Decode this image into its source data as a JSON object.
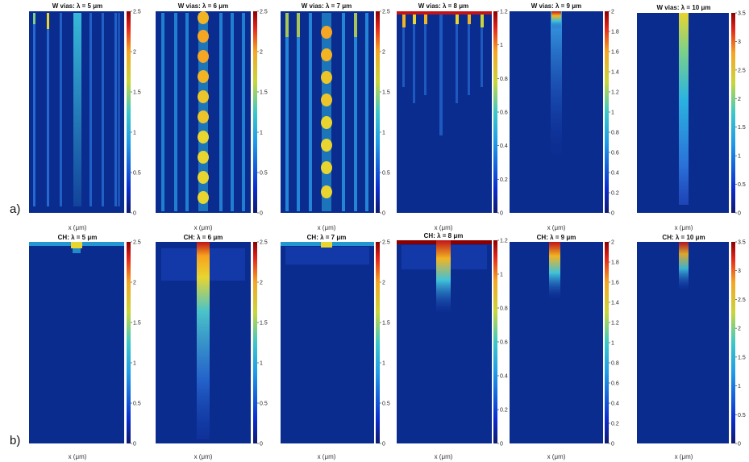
{
  "figure": {
    "row_labels": [
      "a)",
      "b)"
    ],
    "colors": {
      "dark_blue": "#0b2c8f",
      "cbar_bottom": "#101a6e",
      "cbar_top": "#8a0000"
    }
  },
  "chart_data": [
    {
      "type": "heatmap",
      "row": "a",
      "title": "W vias: λ = 5 μm",
      "xlabel": "x (μm)",
      "colorbar": {
        "min": 0,
        "max": 2.5,
        "ticks": [
          "2.5",
          "2",
          "1.5",
          "1",
          "0.5",
          "0"
        ]
      }
    },
    {
      "type": "heatmap",
      "row": "a",
      "title": "W vias: λ = 6 μm",
      "xlabel": "x (μm)",
      "colorbar": {
        "min": 0,
        "max": 2.5,
        "ticks": [
          "2.5",
          "2",
          "1.5",
          "1",
          "0.5",
          "0"
        ]
      }
    },
    {
      "type": "heatmap",
      "row": "a",
      "title": "W vias: λ = 7 μm",
      "xlabel": "x (μm)",
      "colorbar": {
        "min": 0,
        "max": 2.5,
        "ticks": [
          "2.5",
          "2",
          "1.5",
          "1",
          "0.5",
          "0"
        ]
      }
    },
    {
      "type": "heatmap",
      "row": "a",
      "title": "W vias: λ = 8 μm",
      "xlabel": "x (μm)",
      "colorbar": {
        "min": 0,
        "max": 1.2,
        "ticks": [
          "1.2",
          "1",
          "0.8",
          "0.6",
          "0.4",
          "0.2",
          "0"
        ]
      }
    },
    {
      "type": "heatmap",
      "row": "a",
      "title": "W vias: λ = 9 μm",
      "xlabel": "x (μm)",
      "colorbar": {
        "min": 0,
        "max": 2,
        "ticks": [
          "2",
          "1.8",
          "1.6",
          "1.4",
          "1.2",
          "1",
          "0.8",
          "0.6",
          "0.4",
          "0.2",
          "0"
        ]
      }
    },
    {
      "type": "heatmap",
      "row": "a",
      "title": "W vias: λ = 10 μm",
      "xlabel": "x (μm)",
      "colorbar": {
        "min": 0,
        "max": 3.5,
        "ticks": [
          "3.5",
          "3",
          "2.5",
          "2",
          "1.5",
          "1",
          "0.5",
          "0"
        ]
      }
    },
    {
      "type": "heatmap",
      "row": "b",
      "title": "CH: λ = 5 μm",
      "xlabel": "x (μm)",
      "colorbar": {
        "min": 0,
        "max": 2.5,
        "ticks": [
          "2.5",
          "2",
          "1.5",
          "1",
          "0.5",
          "0"
        ]
      }
    },
    {
      "type": "heatmap",
      "row": "b",
      "title": "CH: λ = 6 μm",
      "xlabel": "x (μm)",
      "colorbar": {
        "min": 0,
        "max": 2.5,
        "ticks": [
          "2.5",
          "2",
          "1.5",
          "1",
          "0.5",
          "0"
        ]
      }
    },
    {
      "type": "heatmap",
      "row": "b",
      "title": "CH: λ = 7 μm",
      "xlabel": "x (μm)",
      "colorbar": {
        "min": 0,
        "max": 2.5,
        "ticks": [
          "2.5",
          "2",
          "1.5",
          "1",
          "0.5",
          "0"
        ]
      }
    },
    {
      "type": "heatmap",
      "row": "b",
      "title": "CH: λ = 8 μm",
      "xlabel": "x (μm)",
      "colorbar": {
        "min": 0,
        "max": 1.2,
        "ticks": [
          "1.2",
          "1",
          "0.8",
          "0.6",
          "0.4",
          "0.2",
          "0"
        ]
      }
    },
    {
      "type": "heatmap",
      "row": "b",
      "title": "CH: λ = 9 μm",
      "xlabel": "x (μm)",
      "colorbar": {
        "min": 0,
        "max": 2,
        "ticks": [
          "2",
          "1.8",
          "1.6",
          "1.4",
          "1.2",
          "1",
          "0.8",
          "0.6",
          "0.4",
          "0.2",
          "0"
        ]
      }
    },
    {
      "type": "heatmap",
      "row": "b",
      "title": "CH: λ = 10 μm",
      "xlabel": "x (μm)",
      "colorbar": {
        "min": 0,
        "max": 3.5,
        "ticks": [
          "3.5",
          "3",
          "2.5",
          "2",
          "1.5",
          "1",
          "0.5",
          "0"
        ]
      }
    }
  ]
}
